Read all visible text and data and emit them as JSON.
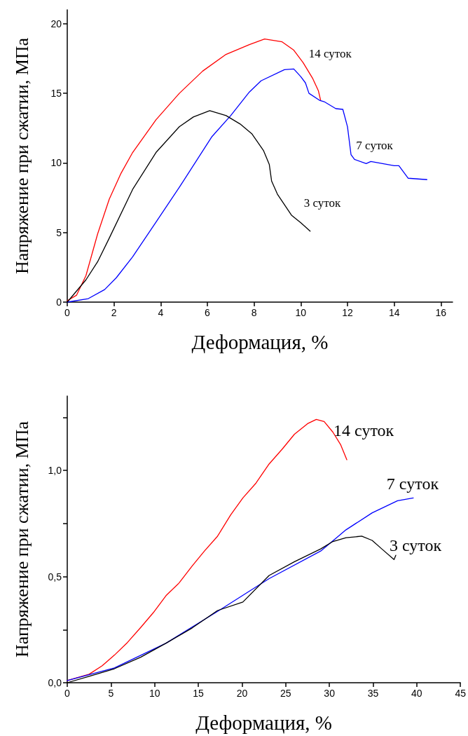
{
  "chart_data": [
    {
      "type": "line",
      "xlabel": "Деформация, %",
      "ylabel": "Напряжение при сжатии, МПа",
      "xlim": [
        0,
        16.5
      ],
      "xticks": [
        0,
        2,
        4,
        6,
        8,
        10,
        12,
        14,
        16
      ],
      "ylim": [
        0,
        21
      ],
      "yticks": [
        0,
        5,
        10,
        15,
        20
      ],
      "grid": false,
      "legend": false,
      "marker": "none",
      "line_style": "solid",
      "series": [
        {
          "name": "14 суток",
          "color": "#ff0000",
          "x": [
            0,
            0.4,
            0.8,
            1.3,
            1.8,
            2.3,
            2.8,
            3.8,
            4.8,
            5.8,
            6.8,
            7.8,
            8.45,
            9.2,
            9.7,
            10.1,
            10.5,
            10.75,
            10.85
          ],
          "values": [
            0.1,
            0.5,
            1.9,
            4.9,
            7.4,
            9.25,
            10.75,
            13.1,
            15,
            16.6,
            17.8,
            18.5,
            18.9,
            18.7,
            18.1,
            17.2,
            16.1,
            15.2,
            14.5
          ]
        },
        {
          "name": "7 суток",
          "color": "#0000ff",
          "x": [
            0,
            0.9,
            1.6,
            2.1,
            2.8,
            3.8,
            4.8,
            6.2,
            7,
            7.8,
            8.3,
            9.3,
            9.7,
            10,
            10.2,
            10.35,
            10.8,
            11,
            11.5,
            11.8,
            12,
            12.15,
            12.3,
            12.8,
            13,
            14,
            14.2,
            14.6,
            15,
            15.4
          ],
          "values": [
            0,
            0.25,
            0.9,
            1.75,
            3.25,
            5.75,
            8.25,
            11.9,
            13.4,
            15.1,
            15.9,
            16.7,
            16.75,
            16.2,
            15.75,
            15,
            14.5,
            14.4,
            13.9,
            13.85,
            12.6,
            10.6,
            10.25,
            9.95,
            10.1,
            9.8,
            9.8,
            8.9,
            8.85,
            8.8
          ]
        },
        {
          "name": "3 суток",
          "color": "#000000",
          "x": [
            0,
            0.8,
            1.3,
            1.8,
            2.8,
            3.8,
            4.8,
            5.4,
            6.1,
            6.8,
            7.4,
            7.9,
            8.4,
            8.65,
            8.75,
            9,
            9.6,
            10,
            10.4
          ],
          "values": [
            0,
            1.6,
            2.9,
            4.6,
            8.1,
            10.75,
            12.6,
            13.3,
            13.75,
            13.4,
            12.8,
            12.1,
            10.9,
            9.9,
            8.7,
            7.75,
            6.25,
            5.7,
            5.1
          ]
        }
      ]
    },
    {
      "type": "line",
      "xlabel": "Деформация, %",
      "ylabel": "Напряжение при сжатии, МПа",
      "xlim": [
        0,
        45
      ],
      "xticks": [
        0,
        5,
        10,
        15,
        20,
        25,
        30,
        35,
        40,
        45
      ],
      "ylim": [
        0,
        1.35
      ],
      "yticks": [
        {
          "value": 0,
          "label": "0,0"
        },
        {
          "value": 0.25,
          "label": null
        },
        {
          "value": 0.5,
          "label": "0,5"
        },
        {
          "value": 0.75,
          "label": null
        },
        {
          "value": 1,
          "label": "1,0"
        },
        {
          "value": 1.25,
          "label": null
        }
      ],
      "grid": false,
      "legend": false,
      "marker": "none",
      "line_style": "solid",
      "series": [
        {
          "name": "14 суток",
          "color": "#ff0000",
          "x": [
            0,
            2.5,
            4,
            5.4,
            6.9,
            8.4,
            9.85,
            11.3,
            12.8,
            14.3,
            15.7,
            17.2,
            18.7,
            20.1,
            21.6,
            23.1,
            24.6,
            26,
            27.5,
            28.5,
            29.4,
            30.4,
            31.3,
            32
          ],
          "values": [
            0.01,
            0.04,
            0.08,
            0.13,
            0.19,
            0.26,
            0.33,
            0.41,
            0.47,
            0.55,
            0.62,
            0.69,
            0.79,
            0.87,
            0.94,
            1.03,
            1.1,
            1.17,
            1.22,
            1.24,
            1.23,
            1.18,
            1.12,
            1.05
          ]
        },
        {
          "name": "7 суток",
          "color": "#0000ff",
          "x": [
            0,
            5.4,
            11.3,
            17.2,
            23.1,
            29,
            31.9,
            34.9,
            37.8,
            39.6
          ],
          "values": [
            0.01,
            0.07,
            0.186,
            0.336,
            0.49,
            0.62,
            0.72,
            0.8,
            0.857,
            0.87
          ]
        },
        {
          "name": "3 суток",
          "color": "#000000",
          "x": [
            0,
            2.5,
            5.4,
            8.4,
            11.3,
            14.3,
            17.2,
            20.1,
            23.1,
            26,
            29,
            30.4,
            31.9,
            33.7,
            34.9,
            36,
            37.4,
            37.6
          ],
          "values": [
            0,
            0.03,
            0.066,
            0.12,
            0.186,
            0.258,
            0.34,
            0.38,
            0.505,
            0.57,
            0.63,
            0.665,
            0.683,
            0.69,
            0.67,
            0.63,
            0.58,
            0.6
          ]
        }
      ]
    }
  ]
}
